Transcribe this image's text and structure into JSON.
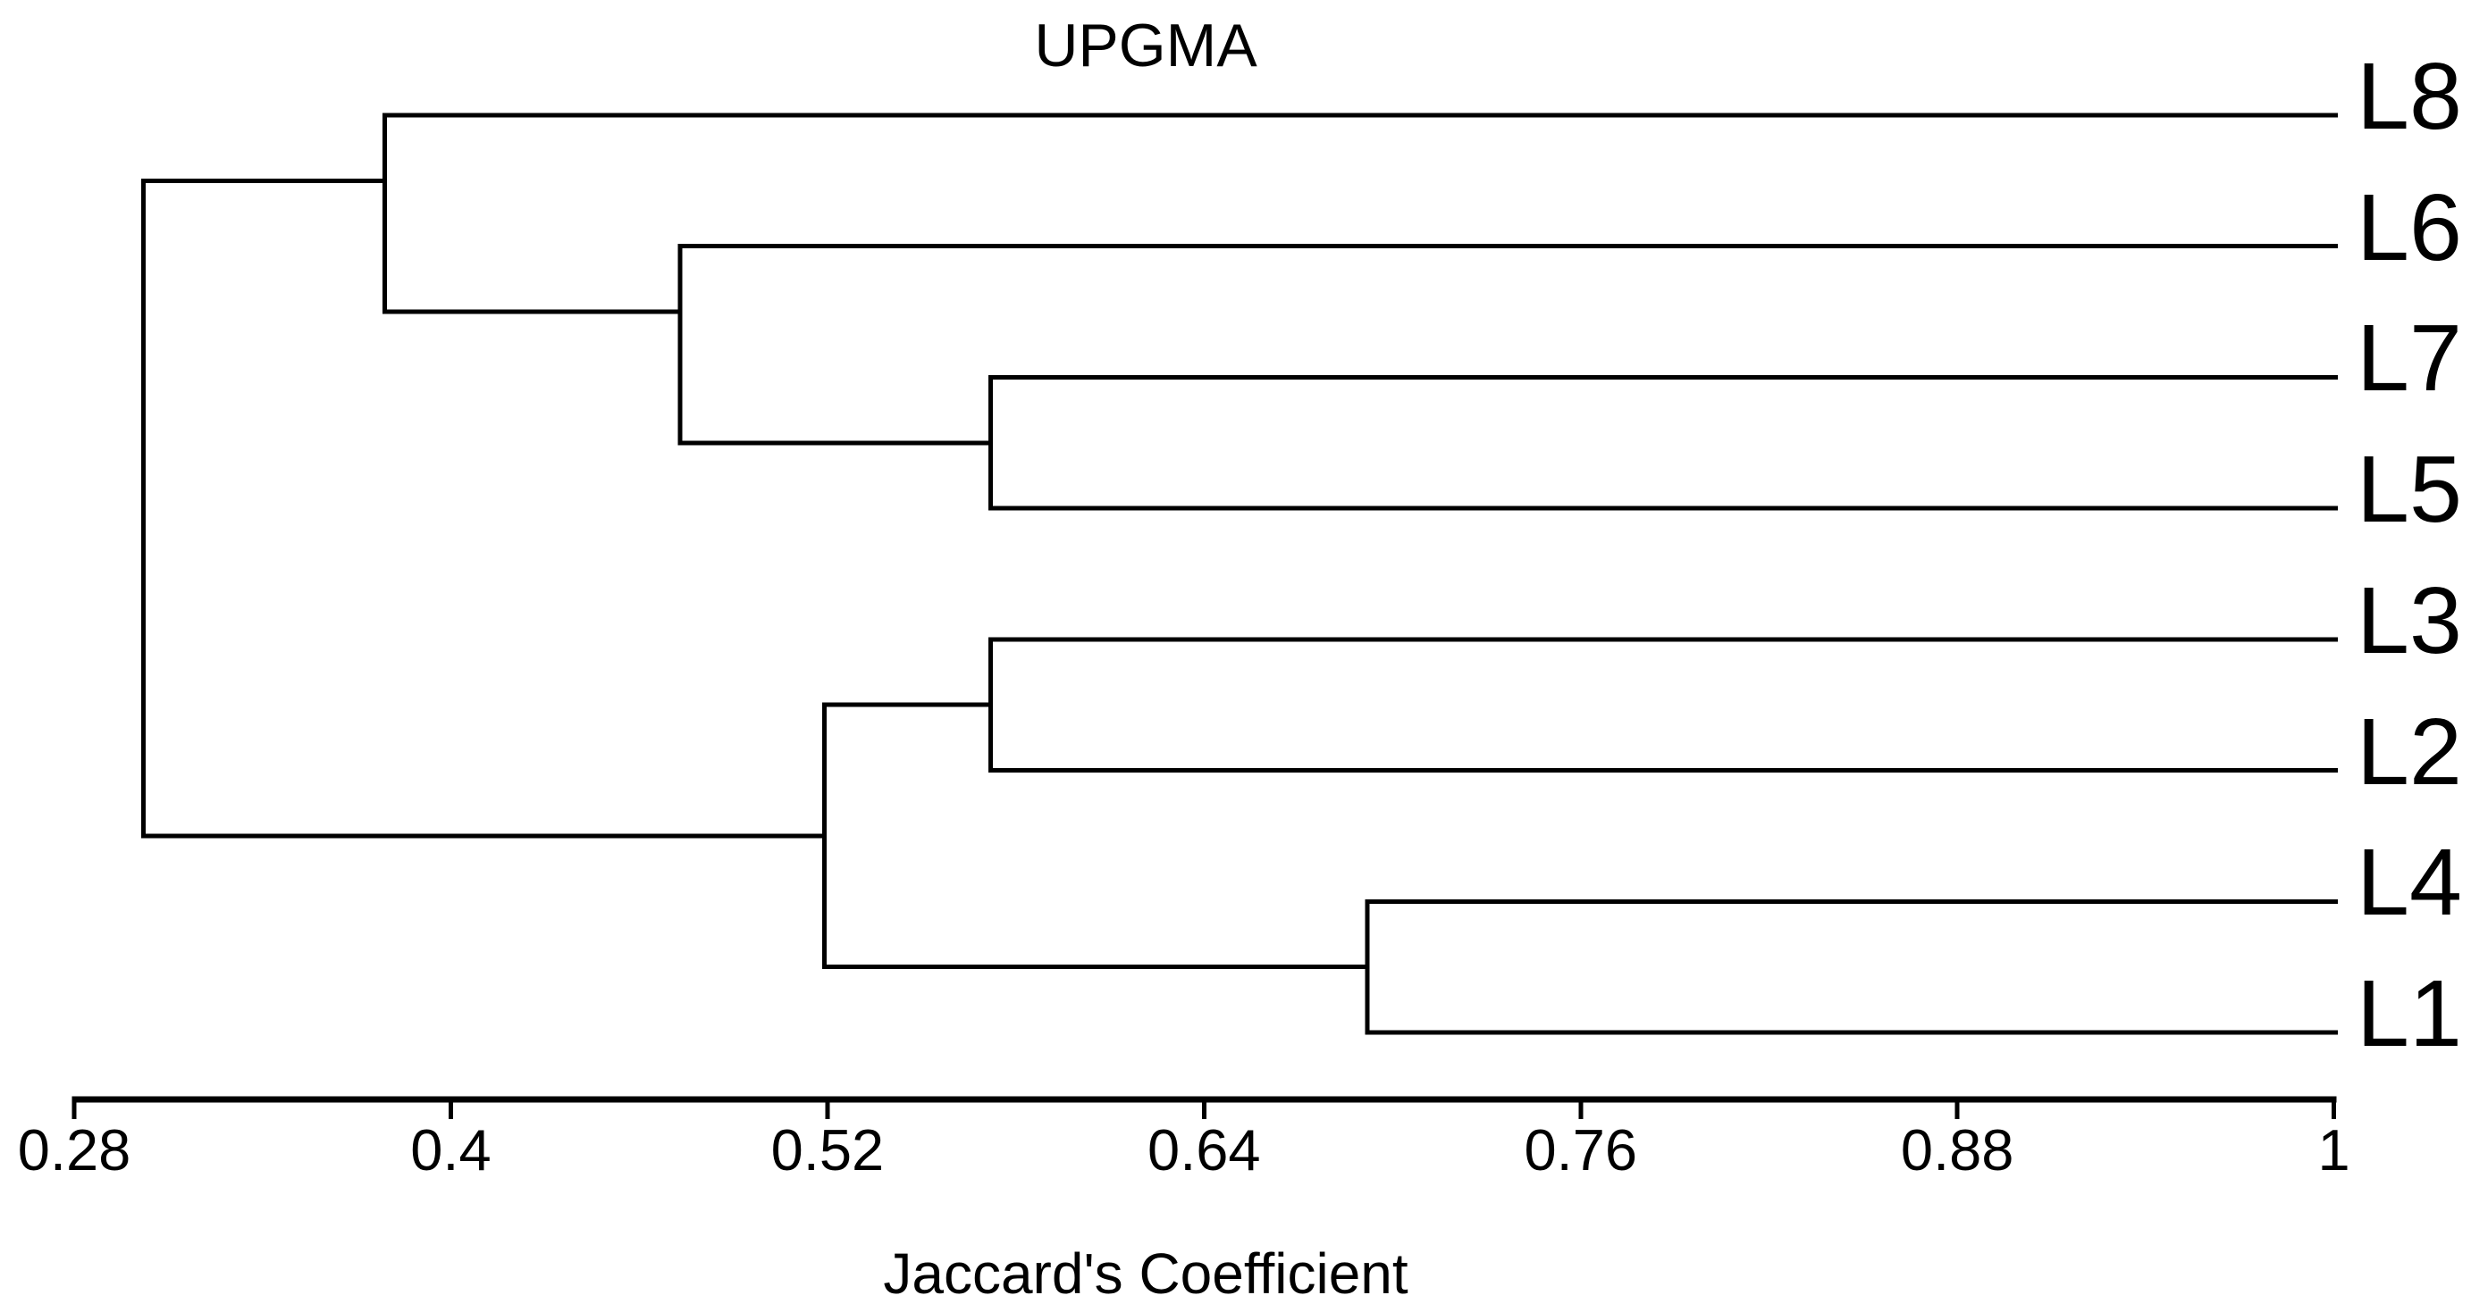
{
  "figure": {
    "title": "UPGMA",
    "x_axis_label": "Jaccard's Coefficient"
  },
  "chart_data": {
    "type": "dendrogram",
    "method": "UPGMA",
    "orientation": "horizontal",
    "title": "UPGMA",
    "xlabel": "Jaccard's Coefficient",
    "x_axis": {
      "min": 0.28,
      "max": 1.0,
      "tick_values": [
        0.28,
        0.4,
        0.52,
        0.64,
        0.76,
        0.88,
        1
      ],
      "tick_labels": [
        "0.28",
        "0.4",
        "0.52",
        "0.64",
        "0.76",
        "0.88",
        "1"
      ],
      "position": "bottom"
    },
    "leaves": [
      "L8",
      "L6",
      "L7",
      "L5",
      "L3",
      "L2",
      "L4",
      "L1"
    ],
    "leaf_similarity": 1.0,
    "merges": [
      {
        "id": "n1",
        "children": [
          "L7",
          "L5"
        ],
        "value": 0.572
      },
      {
        "id": "n2",
        "children": [
          "L3",
          "L2"
        ],
        "value": 0.572
      },
      {
        "id": "n3",
        "children": [
          "L4",
          "L1"
        ],
        "value": 0.692
      },
      {
        "id": "n4",
        "children": [
          "L6",
          "n1"
        ],
        "value": 0.473
      },
      {
        "id": "n5",
        "children": [
          "n2",
          "n3"
        ],
        "value": 0.519
      },
      {
        "id": "n6",
        "children": [
          "L8",
          "n4"
        ],
        "value": 0.379
      },
      {
        "id": "n7",
        "children": [
          "n6",
          "n5"
        ],
        "value": 0.302
      }
    ],
    "colors": {
      "line": "#000000",
      "text": "#000000",
      "background": "#ffffff"
    }
  }
}
